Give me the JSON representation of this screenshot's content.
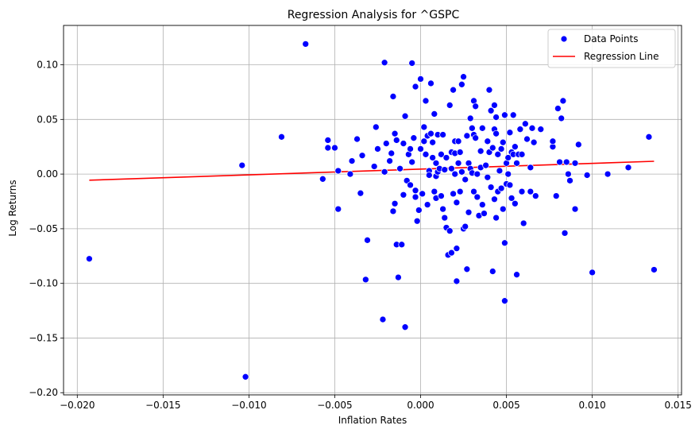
{
  "chart_data": {
    "type": "scatter",
    "title": "Regression Analysis for ^GSPC",
    "xlabel": "Inflation Rates",
    "ylabel": "Log Returns",
    "xlim": [
      -0.0208,
      0.0152
    ],
    "ylim": [
      -0.202,
      0.136
    ],
    "xticks": [
      -0.02,
      -0.015,
      -0.01,
      -0.005,
      0.0,
      0.005,
      0.01,
      0.015
    ],
    "xtick_labels": [
      "−0.020",
      "−0.015",
      "−0.010",
      "−0.005",
      "0.000",
      "0.005",
      "0.010",
      "0.015"
    ],
    "yticks": [
      -0.2,
      -0.15,
      -0.1,
      -0.05,
      0.0,
      0.05,
      0.1
    ],
    "ytick_labels": [
      "−0.20",
      "−0.15",
      "−0.10",
      "−0.05",
      "0.00",
      "0.05",
      "0.10"
    ],
    "grid": true,
    "legend_position": "top-right",
    "colors": {
      "points": "#0000ff",
      "line": "#ff0000",
      "grid": "#b0b0b0"
    },
    "series": [
      {
        "name": "Data Points",
        "kind": "scatter",
        "points": [
          [
            -0.0193,
            -0.0775
          ],
          [
            -0.0102,
            -0.1855
          ],
          [
            -0.0104,
            0.008
          ],
          [
            -0.0067,
            0.119
          ],
          [
            -0.0081,
            0.034
          ],
          [
            -0.0057,
            -0.0045
          ],
          [
            -0.0054,
            0.031
          ],
          [
            -0.0054,
            0.024
          ],
          [
            -0.005,
            0.024
          ],
          [
            -0.0048,
            0.003
          ],
          [
            -0.0048,
            -0.032
          ],
          [
            -0.0041,
            0.0
          ],
          [
            -0.004,
            0.012
          ],
          [
            -0.0037,
            0.032
          ],
          [
            -0.0035,
            -0.0175
          ],
          [
            -0.0034,
            0.017
          ],
          [
            -0.0032,
            -0.0965
          ],
          [
            -0.0031,
            -0.0605
          ],
          [
            -0.0027,
            0.007
          ],
          [
            -0.0026,
            0.043
          ],
          [
            -0.0025,
            0.023
          ],
          [
            -0.0022,
            -0.133
          ],
          [
            -0.0021,
            0.102
          ],
          [
            -0.0021,
            0.002
          ],
          [
            -0.002,
            0.028
          ],
          [
            -0.0018,
            0.012
          ],
          [
            -0.0017,
            0.019
          ],
          [
            -0.0016,
            0.071
          ],
          [
            -0.0016,
            -0.034
          ],
          [
            -0.0015,
            0.037
          ],
          [
            -0.0015,
            -0.027
          ],
          [
            -0.0014,
            0.031
          ],
          [
            -0.0014,
            -0.0645
          ],
          [
            -0.0013,
            -0.0945
          ],
          [
            -0.0012,
            0.005
          ],
          [
            -0.0011,
            -0.0645
          ],
          [
            -0.001,
            0.028
          ],
          [
            -0.001,
            -0.019
          ],
          [
            -0.0009,
            0.053
          ],
          [
            -0.0009,
            -0.14
          ],
          [
            -0.0008,
            -0.006
          ],
          [
            -0.0007,
            0.018
          ],
          [
            -0.0006,
            0.023
          ],
          [
            -0.0006,
            -0.01
          ],
          [
            -0.0005,
            0.011
          ],
          [
            -0.0005,
            0.1015
          ],
          [
            -0.0004,
            0.033
          ],
          [
            -0.0003,
            -0.015
          ],
          [
            -0.0003,
            -0.021
          ],
          [
            -0.0003,
            0.08
          ],
          [
            -0.0002,
            -0.043
          ],
          [
            -0.0001,
            -0.033
          ],
          [
            0.0,
            0.087
          ],
          [
            0.0,
            0.023
          ],
          [
            0.0001,
            -0.018
          ],
          [
            0.0002,
            0.043
          ],
          [
            0.0002,
            0.03
          ],
          [
            0.0003,
            0.067
          ],
          [
            0.0003,
            0.018
          ],
          [
            0.0004,
            0.035
          ],
          [
            0.0004,
            -0.028
          ],
          [
            0.0005,
            0.003
          ],
          [
            0.0005,
            -0.001
          ],
          [
            0.0006,
            0.037
          ],
          [
            0.0006,
            0.083
          ],
          [
            0.0007,
            0.029
          ],
          [
            0.0007,
            0.015
          ],
          [
            0.0008,
            -0.016
          ],
          [
            0.0008,
            0.055
          ],
          [
            0.0009,
            0.01
          ],
          [
            0.0009,
            -0.022
          ],
          [
            0.0009,
            -0.002
          ],
          [
            0.001,
            0.036
          ],
          [
            0.001,
            0.002
          ],
          [
            0.0011,
            0.005
          ],
          [
            0.0012,
            -0.02
          ],
          [
            0.0012,
            0.018
          ],
          [
            0.0013,
            -0.032
          ],
          [
            0.0013,
            0.036
          ],
          [
            0.0014,
            0.004
          ],
          [
            0.0014,
            -0.04
          ],
          [
            0.0015,
            -0.049
          ],
          [
            0.0015,
            0.015
          ],
          [
            0.0016,
            -0.074
          ],
          [
            0.0017,
            0.063
          ],
          [
            0.0017,
            -0.052
          ],
          [
            0.0018,
            0.02
          ],
          [
            0.0018,
            0.005
          ],
          [
            0.0018,
            -0.072
          ],
          [
            0.0019,
            0.077
          ],
          [
            0.0019,
            -0.018
          ],
          [
            0.002,
            0.03
          ],
          [
            0.002,
            0.019
          ],
          [
            0.002,
            0.0
          ],
          [
            0.0021,
            -0.026
          ],
          [
            0.0021,
            -0.068
          ],
          [
            0.0021,
            -0.098
          ],
          [
            0.0022,
            0.03
          ],
          [
            0.0022,
            0.01
          ],
          [
            0.0023,
            0.02
          ],
          [
            0.0023,
            -0.016
          ],
          [
            0.0024,
            0.082
          ],
          [
            0.0024,
            0.002
          ],
          [
            0.0025,
            0.089
          ],
          [
            0.0025,
            -0.05
          ],
          [
            0.0026,
            -0.005
          ],
          [
            0.0026,
            -0.048
          ],
          [
            0.0027,
            0.035
          ],
          [
            0.0027,
            -0.087
          ],
          [
            0.0028,
            0.01
          ],
          [
            0.0028,
            -0.035
          ],
          [
            0.0029,
            0.051
          ],
          [
            0.0029,
            0.005
          ],
          [
            0.003,
            0.001
          ],
          [
            0.003,
            0.042
          ],
          [
            0.0031,
            0.067
          ],
          [
            0.0031,
            0.036
          ],
          [
            0.0031,
            -0.016
          ],
          [
            0.0032,
            0.062
          ],
          [
            0.0032,
            0.033
          ],
          [
            0.0033,
            0.0
          ],
          [
            0.0033,
            -0.021
          ],
          [
            0.0034,
            -0.038
          ],
          [
            0.0035,
            0.021
          ],
          [
            0.0035,
            0.006
          ],
          [
            0.0036,
            0.042
          ],
          [
            0.0036,
            -0.028
          ],
          [
            0.0037,
            -0.036
          ],
          [
            0.0038,
            0.008
          ],
          [
            0.0039,
            -0.003
          ],
          [
            0.0039,
            0.03
          ],
          [
            0.004,
            0.077
          ],
          [
            0.004,
            0.02
          ],
          [
            0.0041,
            -0.012
          ],
          [
            0.0041,
            0.058
          ],
          [
            0.0042,
            -0.089
          ],
          [
            0.0042,
            0.024
          ],
          [
            0.0043,
            0.063
          ],
          [
            0.0043,
            0.041
          ],
          [
            0.0043,
            -0.023
          ],
          [
            0.0044,
            0.037
          ],
          [
            0.0044,
            0.052
          ],
          [
            0.0044,
            -0.04
          ],
          [
            0.0045,
            -0.016
          ],
          [
            0.0045,
            0.018
          ],
          [
            0.0046,
            0.003
          ],
          [
            0.0047,
            -0.013
          ],
          [
            0.0047,
            0.023
          ],
          [
            0.0048,
            0.029
          ],
          [
            0.0048,
            -0.032
          ],
          [
            0.0049,
            -0.116
          ],
          [
            0.0049,
            -0.063
          ],
          [
            0.0049,
            0.054
          ],
          [
            0.005,
            0.01
          ],
          [
            0.005,
            -0.009
          ],
          [
            0.0051,
            0.015
          ],
          [
            0.0051,
            0.0
          ],
          [
            0.0052,
            0.038
          ],
          [
            0.0052,
            -0.01
          ],
          [
            0.0053,
            0.02
          ],
          [
            0.0053,
            -0.022
          ],
          [
            0.0054,
            0.054
          ],
          [
            0.0054,
            0.018
          ],
          [
            0.0055,
            0.025
          ],
          [
            0.0055,
            -0.027
          ],
          [
            0.0056,
            0.01
          ],
          [
            0.0056,
            -0.092
          ],
          [
            0.0057,
            0.018
          ],
          [
            0.0057,
            0.018
          ],
          [
            0.0058,
            0.041
          ],
          [
            0.0059,
            0.018
          ],
          [
            0.0059,
            -0.016
          ],
          [
            0.006,
            -0.045
          ],
          [
            0.0061,
            0.046
          ],
          [
            0.0062,
            0.032
          ],
          [
            0.0064,
            0.006
          ],
          [
            0.0064,
            -0.016
          ],
          [
            0.0065,
            0.042
          ],
          [
            0.0066,
            0.029
          ],
          [
            0.0067,
            -0.02
          ],
          [
            0.007,
            0.041
          ],
          [
            0.0077,
            0.025
          ],
          [
            0.0077,
            0.03
          ],
          [
            0.0079,
            -0.02
          ],
          [
            0.008,
            0.06
          ],
          [
            0.0081,
            0.011
          ],
          [
            0.0082,
            0.051
          ],
          [
            0.0083,
            0.067
          ],
          [
            0.0084,
            -0.054
          ],
          [
            0.0085,
            0.011
          ],
          [
            0.0086,
            0.0
          ],
          [
            0.0087,
            -0.006
          ],
          [
            0.009,
            0.01
          ],
          [
            0.009,
            -0.032
          ],
          [
            0.0092,
            0.027
          ],
          [
            0.0097,
            -0.001
          ],
          [
            0.01,
            -0.09
          ],
          [
            0.0109,
            0.0
          ],
          [
            0.0121,
            0.006
          ],
          [
            0.0133,
            0.034
          ],
          [
            0.0136,
            -0.0875
          ]
        ]
      },
      {
        "name": "Regression Line",
        "kind": "line",
        "points": [
          [
            -0.0193,
            -0.0056
          ],
          [
            0.0136,
            0.0117
          ]
        ]
      }
    ]
  }
}
